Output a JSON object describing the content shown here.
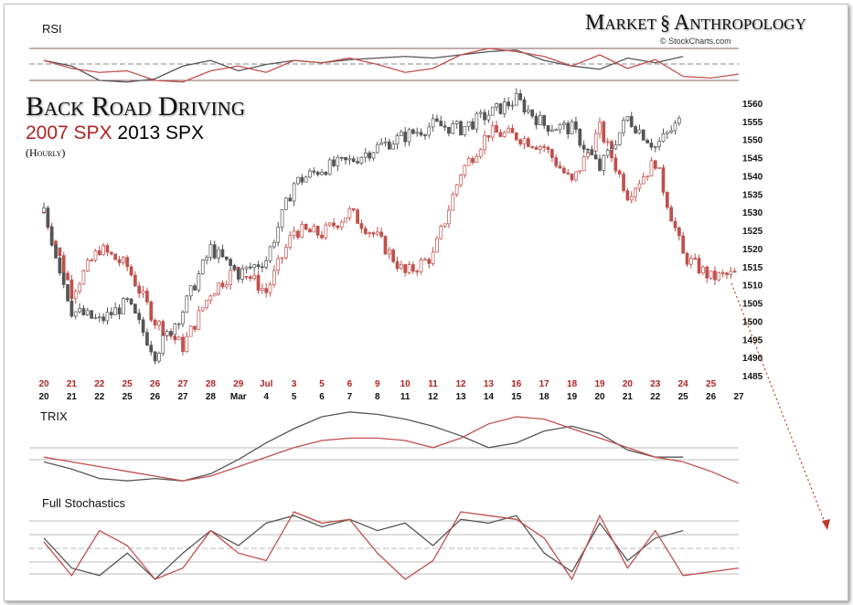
{
  "brand": {
    "name_left": "Market",
    "name_right": "Anthropology",
    "logo_icon": "dna-helix-icon",
    "credit": "© StockCharts.com"
  },
  "title": "Back Road Driving",
  "subtitle": {
    "red": "2007 SPX",
    "black": "2013 SPX"
  },
  "interval": "(Hourly)",
  "colors": {
    "2007": "#c0504d",
    "2013": "#555555",
    "arrow": "#c0392b"
  },
  "chart_data": {
    "type": "line",
    "panels": {
      "rsi_label": "RSI",
      "trix_label": "TRIX",
      "stoch_label": "Full Stochastics"
    },
    "ylim": [
      1485,
      1560
    ],
    "yticks": [
      1560,
      1555,
      1550,
      1545,
      1540,
      1535,
      1530,
      1525,
      1520,
      1515,
      1510,
      1505,
      1500,
      1495,
      1490,
      1485
    ],
    "xticks_2007": [
      "20",
      "21",
      "22",
      "25",
      "26",
      "27",
      "28",
      "29",
      "Jul",
      "3",
      "5",
      "6",
      "9",
      "10",
      "11",
      "12",
      "13",
      "16",
      "17",
      "18",
      "19",
      "20",
      "23",
      "24",
      "25"
    ],
    "xticks_2013": [
      "20",
      "21",
      "22",
      "25",
      "26",
      "27",
      "28",
      "Mar",
      "4",
      "5",
      "6",
      "7",
      "8",
      "11",
      "12",
      "13",
      "14",
      "15",
      "18",
      "19",
      "20",
      "21",
      "22",
      "25",
      "26",
      "27"
    ],
    "series": [
      {
        "name": "2013 SPX",
        "close": [
          1530,
          1503,
          1500,
          1505,
          1491,
          1503,
          1520,
          1513,
          1517,
          1538,
          1542,
          1544,
          1548,
          1551,
          1554,
          1553,
          1557,
          1561,
          1554,
          1553,
          1542,
          1556,
          1548,
          1556
        ],
        "rsi": [
          55,
          48,
          30,
          28,
          32,
          48,
          55,
          42,
          50,
          55,
          52,
          56,
          58,
          60,
          58,
          62,
          66,
          68,
          55,
          48,
          44,
          58,
          52,
          60
        ],
        "trix": [
          -0.2,
          -0.35,
          -0.55,
          -0.6,
          -0.55,
          -0.6,
          -0.45,
          -0.15,
          0.2,
          0.5,
          0.75,
          0.85,
          0.8,
          0.7,
          0.55,
          0.35,
          0.1,
          0.2,
          0.45,
          0.55,
          0.4,
          0.05,
          -0.1,
          -0.1
        ],
        "stoch": [
          60,
          20,
          10,
          40,
          5,
          40,
          70,
          50,
          80,
          90,
          75,
          85,
          70,
          80,
          50,
          85,
          80,
          90,
          40,
          15,
          80,
          30,
          60,
          70
        ]
      },
      {
        "name": "2007 SPX",
        "close": [
          1530,
          1508,
          1520,
          1515,
          1500,
          1493,
          1508,
          1515,
          1508,
          1525,
          1524,
          1530,
          1523,
          1513,
          1518,
          1541,
          1552,
          1551,
          1548,
          1538,
          1553,
          1535,
          1544,
          1518,
          1512,
          1513
        ],
        "rsi": [
          55,
          45,
          40,
          42,
          30,
          28,
          42,
          48,
          40,
          55,
          52,
          58,
          50,
          40,
          45,
          62,
          70,
          66,
          60,
          48,
          62,
          45,
          56,
          35,
          33,
          38
        ],
        "trix": [
          -0.1,
          -0.2,
          -0.3,
          -0.4,
          -0.5,
          -0.6,
          -0.5,
          -0.3,
          -0.1,
          0.1,
          0.25,
          0.3,
          0.3,
          0.25,
          0.1,
          0.3,
          0.6,
          0.75,
          0.7,
          0.5,
          0.3,
          0.1,
          -0.1,
          -0.2,
          -0.4,
          -0.65
        ],
        "stoch": [
          55,
          10,
          70,
          50,
          5,
          20,
          70,
          40,
          30,
          95,
          80,
          85,
          40,
          5,
          30,
          95,
          90,
          85,
          60,
          5,
          90,
          20,
          70,
          10,
          15,
          20
        ]
      }
    ]
  }
}
